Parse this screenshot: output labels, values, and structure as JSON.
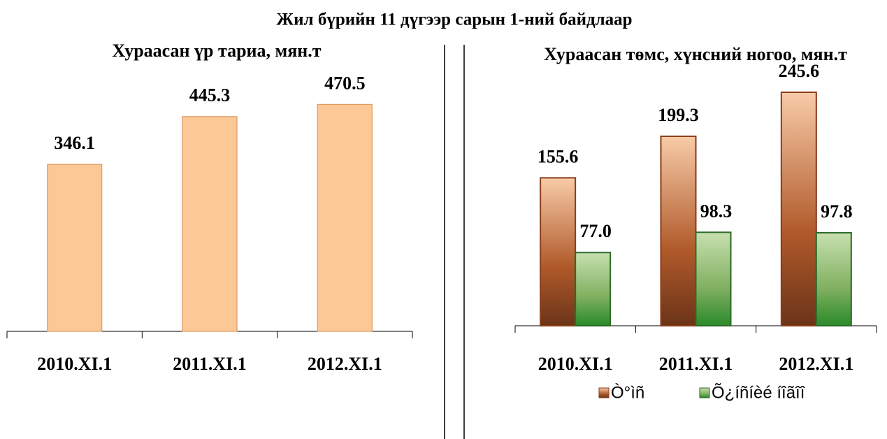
{
  "title": "Жил бүрийн 11 дүгээр сарын 1-ний байдлаар",
  "chart_data": [
    {
      "type": "bar",
      "title": "Хураасан үр тариа, мян.т",
      "categories": [
        "2010.XI.1",
        "2011.XI.1",
        "2012.XI.1"
      ],
      "series": [
        {
          "name": null,
          "color": "#fcc896",
          "values": [
            346.1,
            445.3,
            470.5
          ]
        }
      ],
      "ylim": [
        0,
        600
      ]
    },
    {
      "type": "bar",
      "title": "Хураасан төмс, хүнсний ногоо, мян.т",
      "categories": [
        "2010.XI.1",
        "2011.XI.1",
        "2012.XI.1"
      ],
      "series": [
        {
          "name": "Ò°ìñ",
          "color": "#b9683a",
          "values": [
            155.6,
            199.3,
            245.6
          ]
        },
        {
          "name": "Õ¿íñíèé íîãîî",
          "color": "#5a9a3a",
          "values": [
            77,
            98.3,
            97.8
          ],
          "value_labels": [
            "77.0",
            "98.3",
            "97.8"
          ]
        }
      ],
      "ylim": [
        0,
        300
      ],
      "legend": "bottom"
    }
  ]
}
